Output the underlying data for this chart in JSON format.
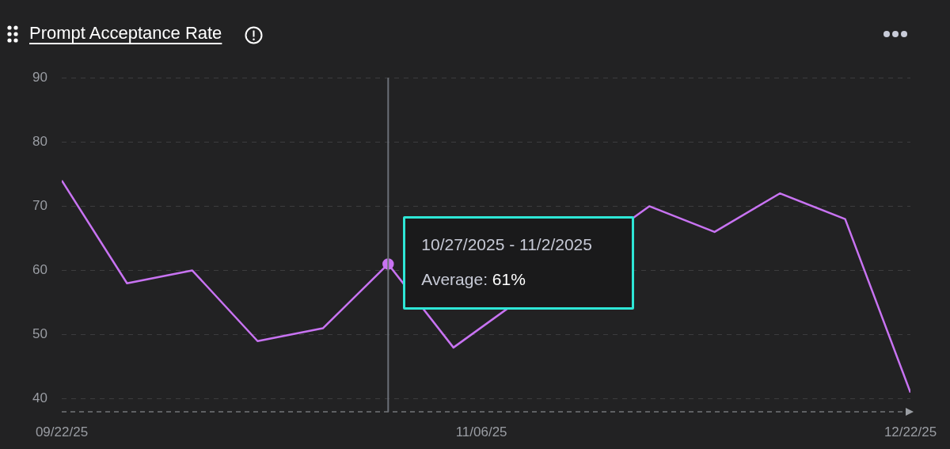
{
  "chart_data": {
    "type": "line",
    "title": "Prompt Acceptance Rate",
    "x": [
      "2025-09-22",
      "2025-09-29",
      "2025-10-06",
      "2025-10-13",
      "2025-10-20",
      "2025-10-27",
      "2025-11-03",
      "2025-11-10",
      "2025-11-17",
      "2025-11-24",
      "2025-12-01",
      "2025-12-08",
      "2025-12-15",
      "2025-12-22"
    ],
    "series": [
      {
        "color": "#c873f2",
        "values": [
          74,
          58,
          60,
          49,
          51,
          61,
          48,
          null,
          null,
          70,
          66,
          72,
          68,
          41
        ]
      },
      {
        "type": "scatter",
        "color": "#c873f2",
        "marker": "circle",
        "x": [
          "2025-10-27"
        ],
        "values": [
          61
        ]
      }
    ],
    "xlim": [
      "2025-09-22",
      "2025-12-22"
    ],
    "xticks": [
      {
        "value": "2025-09-22",
        "label": "09/22/25"
      },
      {
        "value": "2025-11-06",
        "label": "11/06/25"
      },
      {
        "value": "2025-12-22",
        "label": "12/22/25"
      }
    ],
    "ylim": [
      38,
      90
    ],
    "yticks": [
      40,
      50,
      60,
      70,
      80,
      90
    ],
    "ref_lines": [
      {
        "axis": "x",
        "value": "2025-10-27",
        "color": "#6b7078"
      }
    ],
    "annotations": [
      {
        "text": "10/27/2025 - 11/2/2025",
        "x": "2025-10-27",
        "y": 61
      },
      {
        "text": "Average: 61%",
        "x": "2025-10-27",
        "y": 61
      }
    ],
    "grid": "y",
    "legend": false,
    "marker": "none",
    "line_style": "solid"
  }
}
